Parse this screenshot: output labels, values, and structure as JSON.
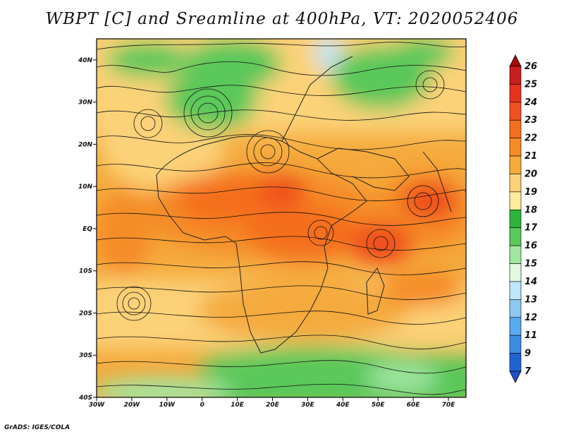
{
  "title": "WBPT [C] and Sreamline at 400hPa, VT: 2020052406",
  "credit": "GrADS: IGES/COLA",
  "map": {
    "lat_labels": [
      "40N",
      "30N",
      "20N",
      "10N",
      "EQ",
      "10S",
      "20S",
      "30S",
      "40S"
    ],
    "lon_labels": [
      "30W",
      "20W",
      "10W",
      "0",
      "10E",
      "20E",
      "30E",
      "40E",
      "50E",
      "60E",
      "70E"
    ],
    "lat_range": [
      -40,
      45
    ],
    "lon_range": [
      -30,
      75
    ]
  },
  "colorbar": {
    "labels": [
      "26",
      "25",
      "24",
      "23",
      "22",
      "21",
      "20",
      "19",
      "18",
      "17",
      "16",
      "15",
      "14",
      "13",
      "12",
      "11",
      "9",
      "7"
    ],
    "colors": [
      "#a50a0a",
      "#c81e1e",
      "#e6321e",
      "#f0501e",
      "#f56e1e",
      "#f58c28",
      "#f5aa3c",
      "#fcd278",
      "#fcec9c",
      "#2db43c",
      "#5ac85a",
      "#a0e6a0",
      "#e0fae0",
      "#bee6fa",
      "#8cc8f0",
      "#5aaaf0",
      "#3c8ce6",
      "#1e64d2",
      "#1e50c8"
    ]
  }
}
